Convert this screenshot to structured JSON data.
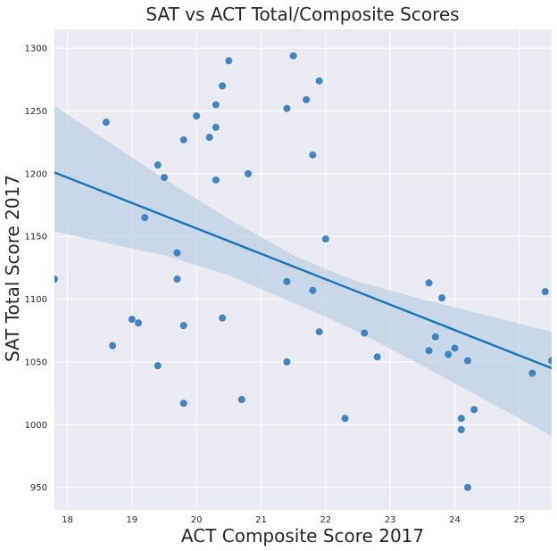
{
  "chart_data": {
    "type": "scatter",
    "title": "SAT vs ACT Total/Composite Scores",
    "xlabel": "ACT Composite Score 2017",
    "ylabel": "SAT Total Score 2017",
    "xlim": [
      17.8,
      25.5
    ],
    "ylim": [
      932,
      1315
    ],
    "x_ticks": [
      18,
      19,
      20,
      21,
      22,
      23,
      24,
      25
    ],
    "y_ticks": [
      950,
      1000,
      1050,
      1100,
      1150,
      1200,
      1250,
      1300
    ],
    "grid": true,
    "colors": {
      "background": "#eaeaf2",
      "point": "#3a7ebd",
      "line": "#1f77b4",
      "band": "#bcd1e6"
    },
    "series": [
      {
        "points": [
          [
            17.8,
            1116
          ],
          [
            18.6,
            1241
          ],
          [
            18.7,
            1063
          ],
          [
            19.0,
            1084
          ],
          [
            19.1,
            1081
          ],
          [
            19.2,
            1165
          ],
          [
            19.4,
            1207
          ],
          [
            19.4,
            1047
          ],
          [
            19.5,
            1197
          ],
          [
            19.7,
            1137
          ],
          [
            19.7,
            1116
          ],
          [
            19.8,
            1227
          ],
          [
            19.8,
            1079
          ],
          [
            19.8,
            1017
          ],
          [
            20.0,
            1246
          ],
          [
            20.2,
            1229
          ],
          [
            20.3,
            1255
          ],
          [
            20.3,
            1237
          ],
          [
            20.3,
            1195
          ],
          [
            20.4,
            1270
          ],
          [
            20.4,
            1085
          ],
          [
            20.5,
            1290
          ],
          [
            20.7,
            1020
          ],
          [
            20.8,
            1200
          ],
          [
            21.4,
            1252
          ],
          [
            21.4,
            1114
          ],
          [
            21.4,
            1050
          ],
          [
            21.5,
            1294
          ],
          [
            21.7,
            1259
          ],
          [
            21.8,
            1215
          ],
          [
            21.8,
            1107
          ],
          [
            21.9,
            1274
          ],
          [
            21.9,
            1074
          ],
          [
            22.0,
            1148
          ],
          [
            22.3,
            1005
          ],
          [
            22.6,
            1073
          ],
          [
            22.8,
            1054
          ],
          [
            23.6,
            1113
          ],
          [
            23.6,
            1059
          ],
          [
            23.7,
            1070
          ],
          [
            23.8,
            1101
          ],
          [
            23.9,
            1056
          ],
          [
            24.0,
            1061
          ],
          [
            24.1,
            1005
          ],
          [
            24.1,
            996
          ],
          [
            24.2,
            1051
          ],
          [
            24.2,
            950
          ],
          [
            24.3,
            1012
          ],
          [
            25.2,
            1041
          ],
          [
            25.4,
            1106
          ],
          [
            25.5,
            1051
          ]
        ]
      }
    ],
    "regression": {
      "x": [
        17.8,
        25.5
      ],
      "y": [
        1201,
        1045
      ]
    },
    "confidence_band": {
      "x": [
        17.8,
        18.5,
        19.5,
        20.5,
        21.5,
        22.0,
        22.5,
        23.5,
        24.5,
        25.5
      ],
      "upper": [
        1254,
        1230,
        1196,
        1164,
        1135,
        1124,
        1114,
        1100,
        1087,
        1074
      ],
      "lower": [
        1154,
        1146,
        1135,
        1119,
        1097,
        1086,
        1074,
        1047,
        1019,
        991
      ]
    }
  }
}
